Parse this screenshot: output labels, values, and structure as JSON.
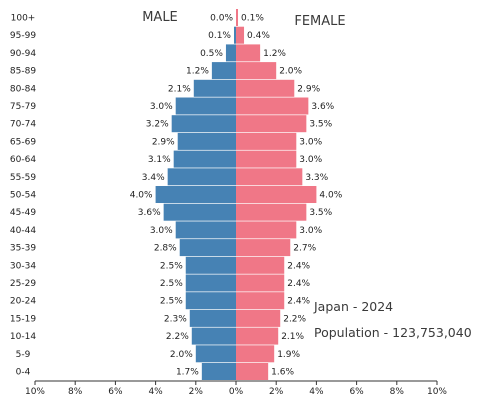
{
  "chart_data": {
    "type": "bar",
    "orientation": "horizontal-population-pyramid",
    "categories": [
      "100+",
      "95-99",
      "90-94",
      "85-89",
      "80-84",
      "75-79",
      "70-74",
      "65-69",
      "60-64",
      "55-59",
      "50-54",
      "45-49",
      "40-44",
      "35-39",
      "30-34",
      "25-29",
      "20-24",
      "15-19",
      "10-14",
      "5-9",
      "0-4"
    ],
    "series": [
      {
        "name": "MALE",
        "color": "#4682b4",
        "values": [
          0.0,
          0.1,
          0.5,
          1.2,
          2.1,
          3.0,
          3.2,
          2.9,
          3.1,
          3.4,
          4.0,
          3.6,
          3.0,
          2.8,
          2.5,
          2.5,
          2.5,
          2.3,
          2.2,
          2.0,
          1.7
        ],
        "value_labels": [
          "0.0%",
          "0.1%",
          "0.5%",
          "1.2%",
          "2.1%",
          "3.0%",
          "3.2%",
          "2.9%",
          "3.1%",
          "3.4%",
          "4.0%",
          "3.6%",
          "3.0%",
          "2.8%",
          "2.5%",
          "2.5%",
          "2.5%",
          "2.3%",
          "2.2%",
          "2.0%",
          "1.7%"
        ]
      },
      {
        "name": "FEMALE",
        "color": "#f07787",
        "values": [
          0.1,
          0.4,
          1.2,
          2.0,
          2.9,
          3.6,
          3.5,
          3.0,
          3.0,
          3.3,
          4.0,
          3.5,
          3.0,
          2.7,
          2.4,
          2.4,
          2.4,
          2.2,
          2.1,
          1.9,
          1.6
        ],
        "value_labels": [
          "0.1%",
          "0.4%",
          "1.2%",
          "2.0%",
          "2.9%",
          "3.6%",
          "3.5%",
          "3.0%",
          "3.0%",
          "3.3%",
          "4.0%",
          "3.5%",
          "3.0%",
          "2.7%",
          "2.4%",
          "2.4%",
          "2.4%",
          "2.2%",
          "2.1%",
          "1.9%",
          "1.6%"
        ]
      }
    ],
    "x_ticks": [
      "10%",
      "8%",
      "6%",
      "4%",
      "2%",
      "0%",
      "2%",
      "4%",
      "6%",
      "8%",
      "10%"
    ],
    "xlim": [
      -10,
      10
    ],
    "grid": false,
    "annotations": {
      "country_year": "Japan - 2024",
      "population": "Population - 123,753,040"
    }
  }
}
